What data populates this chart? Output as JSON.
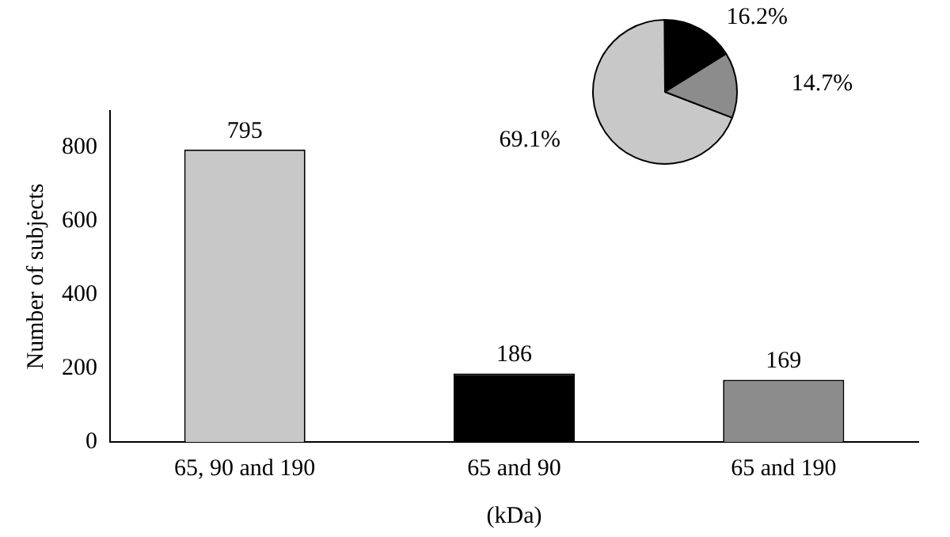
{
  "chart_data": [
    {
      "type": "bar",
      "categories": [
        "65, 90 and 190",
        "65 and 90",
        "65 and 190"
      ],
      "values": [
        795,
        186,
        169
      ],
      "colors": [
        "#c8c8c8",
        "#000000",
        "#8c8c8c"
      ],
      "xlabel": "(kDa)",
      "ylabel": "Number of subjects",
      "ylim": [
        0,
        900
      ],
      "yticks": [
        0,
        200,
        400,
        600,
        800
      ],
      "data_labels": true,
      "grid": false,
      "legend": false
    },
    {
      "type": "pie",
      "categories": [
        null,
        null,
        null
      ],
      "values": [
        69.1,
        16.2,
        14.7
      ],
      "colors": [
        "#c8c8c8",
        "#000000",
        "#8c8c8c"
      ],
      "value_labels": [
        "69.1%",
        "16.2%",
        "14.7%"
      ],
      "legend": false
    }
  ]
}
